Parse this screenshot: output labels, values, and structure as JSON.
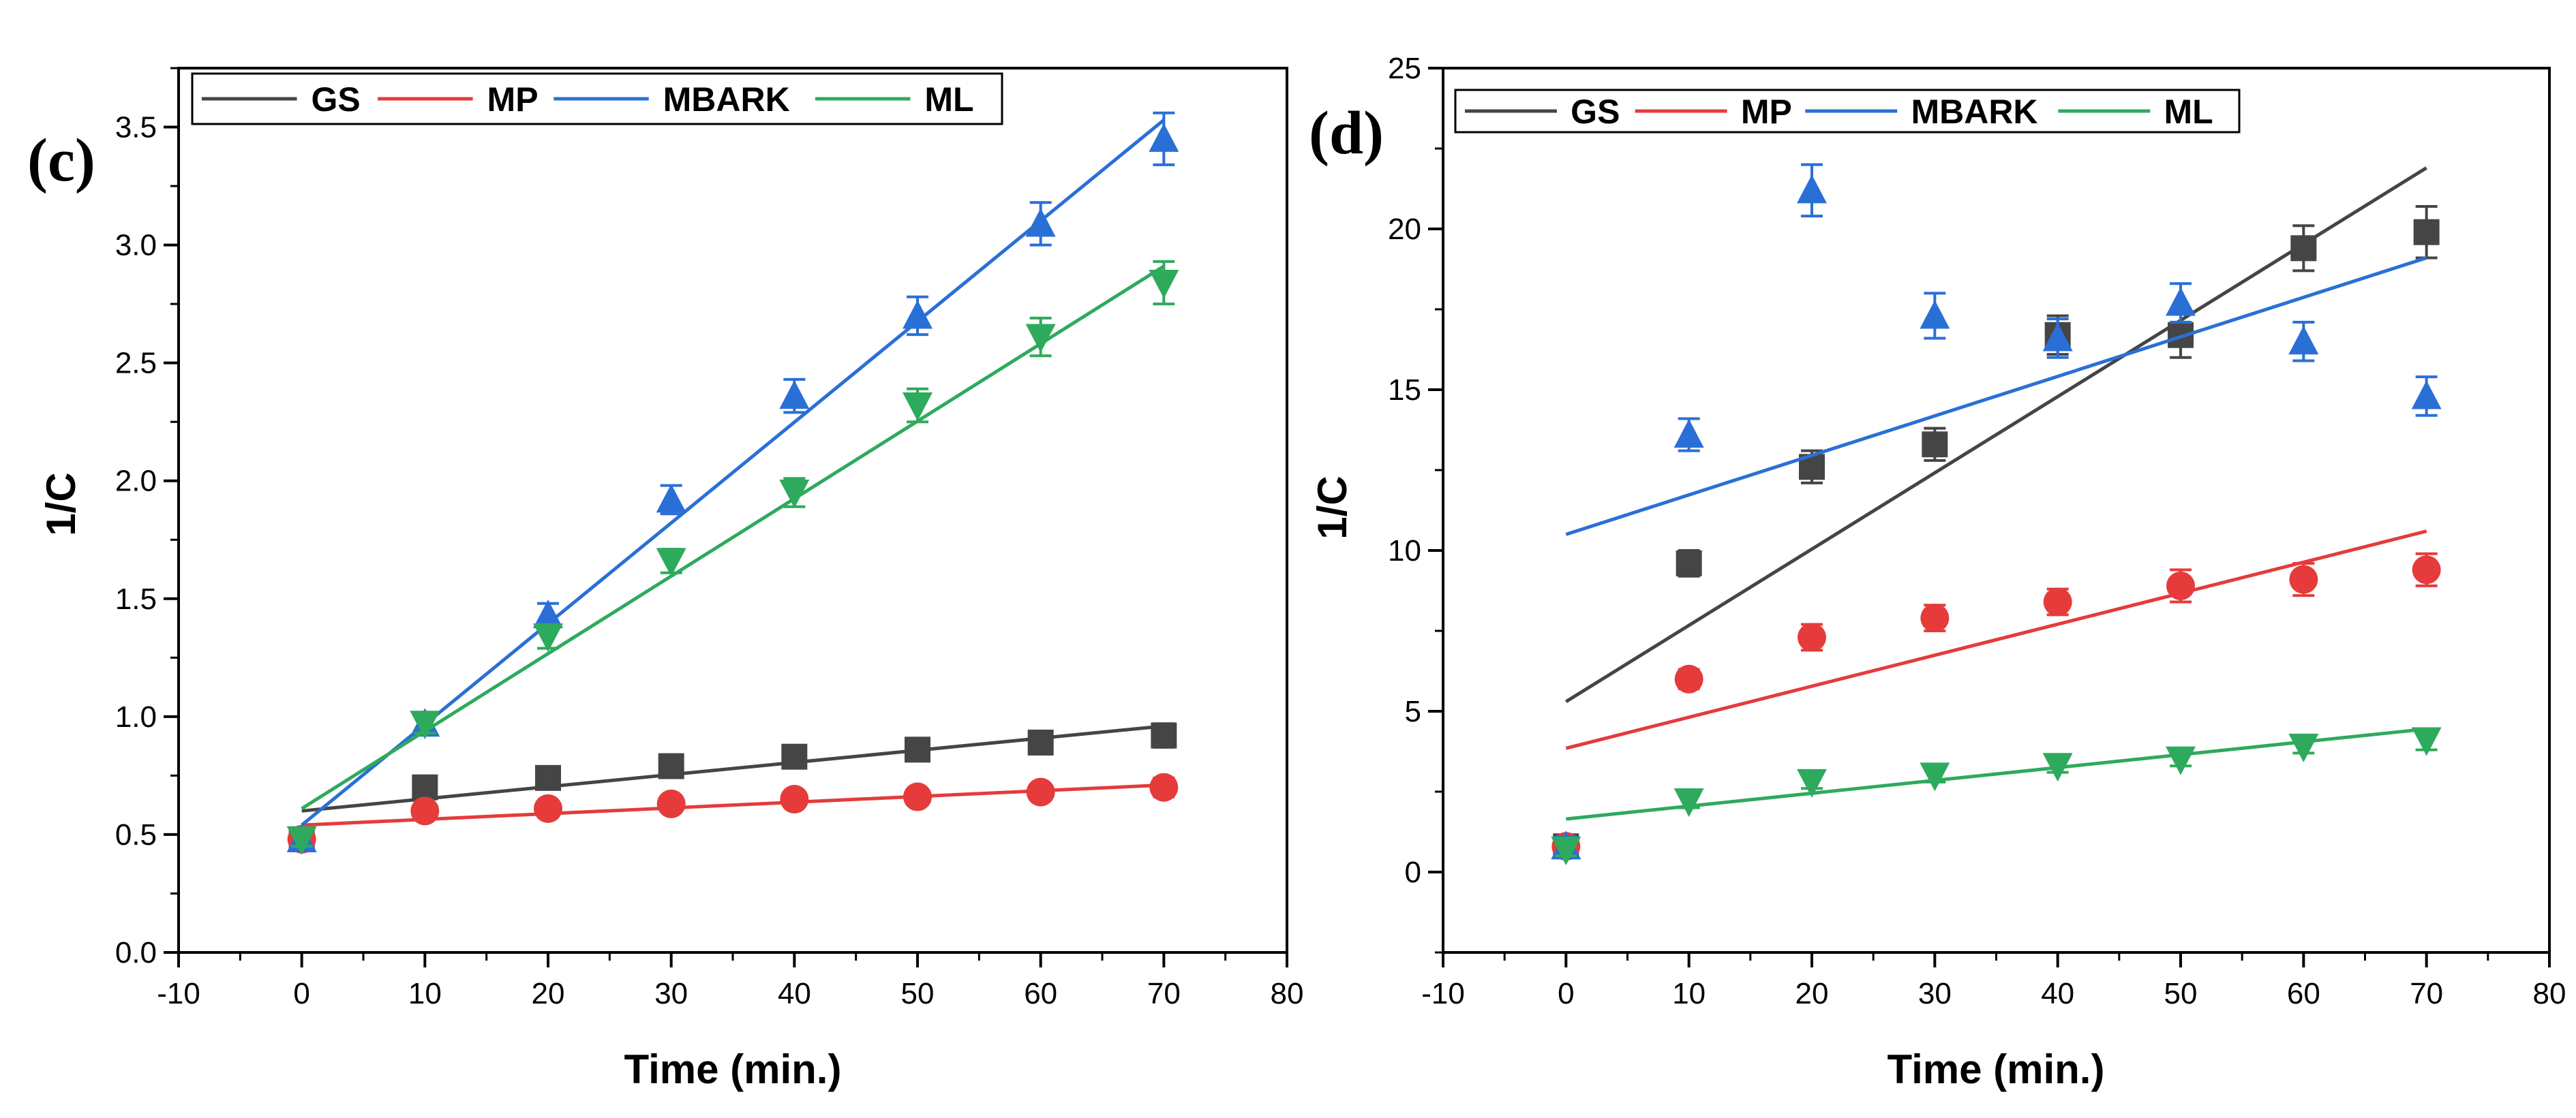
{
  "colors": {
    "GS": "#454545",
    "MP": "#e53b3b",
    "MBARK": "#2a6fd6",
    "ML": "#2eaa5c"
  },
  "chart_data": [
    {
      "type": "scatter",
      "panel_label": "(c)",
      "xlabel": "Time (min.)",
      "ylabel": "1/C",
      "xlim": [
        -10,
        80
      ],
      "ylim": [
        0,
        3.75
      ],
      "xticks": [
        -10,
        0,
        10,
        20,
        30,
        40,
        50,
        60,
        70,
        80
      ],
      "xtick_labels": [
        "-10",
        "0",
        "10",
        "20",
        "30",
        "40",
        "50",
        "60",
        "70",
        "80"
      ],
      "yticks": [
        0,
        0.5,
        1.0,
        1.5,
        2.0,
        2.5,
        3.0,
        3.5
      ],
      "ytick_labels": [
        "0.0",
        "0.5",
        "1.0",
        "1.5",
        "2.0",
        "2.5",
        "3.0",
        "3.5"
      ],
      "legend_position": "top-left",
      "x": [
        0,
        10,
        20,
        30,
        40,
        50,
        60,
        70
      ],
      "series": [
        {
          "name": "GS",
          "marker": "square",
          "values": [
            0.48,
            0.7,
            0.74,
            0.79,
            0.83,
            0.86,
            0.89,
            0.92
          ],
          "errors": [
            0.03,
            0.04,
            0.04,
            0.04,
            0.04,
            0.04,
            0.04,
            0.05
          ],
          "fit": [
            0.6,
            0.96
          ]
        },
        {
          "name": "MP",
          "marker": "circle",
          "values": [
            0.48,
            0.6,
            0.61,
            0.63,
            0.65,
            0.66,
            0.68,
            0.7
          ],
          "errors": [
            0.03,
            0.03,
            0.03,
            0.03,
            0.03,
            0.03,
            0.03,
            0.04
          ],
          "fit": [
            0.54,
            0.71
          ]
        },
        {
          "name": "MBARK",
          "marker": "triangle-up",
          "values": [
            0.48,
            0.97,
            1.43,
            1.92,
            2.36,
            2.7,
            3.09,
            3.45
          ],
          "errors": [
            0.03,
            0.04,
            0.05,
            0.06,
            0.07,
            0.08,
            0.09,
            0.11
          ],
          "fit": [
            0.54,
            3.53
          ]
        },
        {
          "name": "ML",
          "marker": "triangle-down",
          "values": [
            0.48,
            0.97,
            1.34,
            1.66,
            1.95,
            2.32,
            2.61,
            2.84
          ],
          "errors": [
            0.03,
            0.04,
            0.05,
            0.05,
            0.06,
            0.07,
            0.08,
            0.09
          ],
          "fit": [
            0.61,
            2.91
          ]
        }
      ]
    },
    {
      "type": "scatter",
      "panel_label": "(d)",
      "xlabel": "Time (min.)",
      "ylabel": "1/C",
      "xlim": [
        -10,
        80
      ],
      "ylim": [
        -2.5,
        25
      ],
      "xticks": [
        -10,
        0,
        10,
        20,
        30,
        40,
        50,
        60,
        70,
        80
      ],
      "xtick_labels": [
        "-10",
        "0",
        "10",
        "20",
        "30",
        "40",
        "50",
        "60",
        "70",
        "80"
      ],
      "yticks": [
        0,
        5,
        10,
        15,
        20,
        25
      ],
      "ytick_labels": [
        "0",
        "5",
        "10",
        "15",
        "20",
        "25"
      ],
      "legend_position": "top-left",
      "x": [
        0,
        10,
        20,
        30,
        40,
        50,
        60,
        70
      ],
      "series": [
        {
          "name": "GS",
          "marker": "square",
          "values": [
            0.8,
            9.6,
            12.6,
            13.3,
            16.7,
            16.7,
            19.4,
            19.9
          ],
          "errors": [
            0.3,
            0.4,
            0.5,
            0.5,
            0.6,
            0.7,
            0.7,
            0.8
          ],
          "fit": [
            5.3,
            21.9
          ]
        },
        {
          "name": "MP",
          "marker": "circle",
          "values": [
            0.8,
            6.0,
            7.3,
            7.9,
            8.4,
            8.9,
            9.1,
            9.4
          ],
          "errors": [
            0.3,
            0.3,
            0.4,
            0.4,
            0.4,
            0.5,
            0.5,
            0.5
          ],
          "fit": [
            3.85,
            10.6
          ]
        },
        {
          "name": "MBARK",
          "marker": "triangle-up",
          "values": [
            0.8,
            13.6,
            21.2,
            17.3,
            16.6,
            17.7,
            16.5,
            14.8
          ],
          "errors": [
            0.3,
            0.5,
            0.8,
            0.7,
            0.6,
            0.6,
            0.6,
            0.6
          ],
          "fit": [
            10.5,
            19.1
          ]
        },
        {
          "name": "ML",
          "marker": "triangle-down",
          "values": [
            0.7,
            2.2,
            2.8,
            3.0,
            3.3,
            3.5,
            3.9,
            4.1
          ],
          "errors": [
            0.2,
            0.2,
            0.2,
            0.2,
            0.2,
            0.2,
            0.2,
            0.3
          ],
          "fit": [
            1.65,
            4.45
          ]
        }
      ]
    }
  ]
}
